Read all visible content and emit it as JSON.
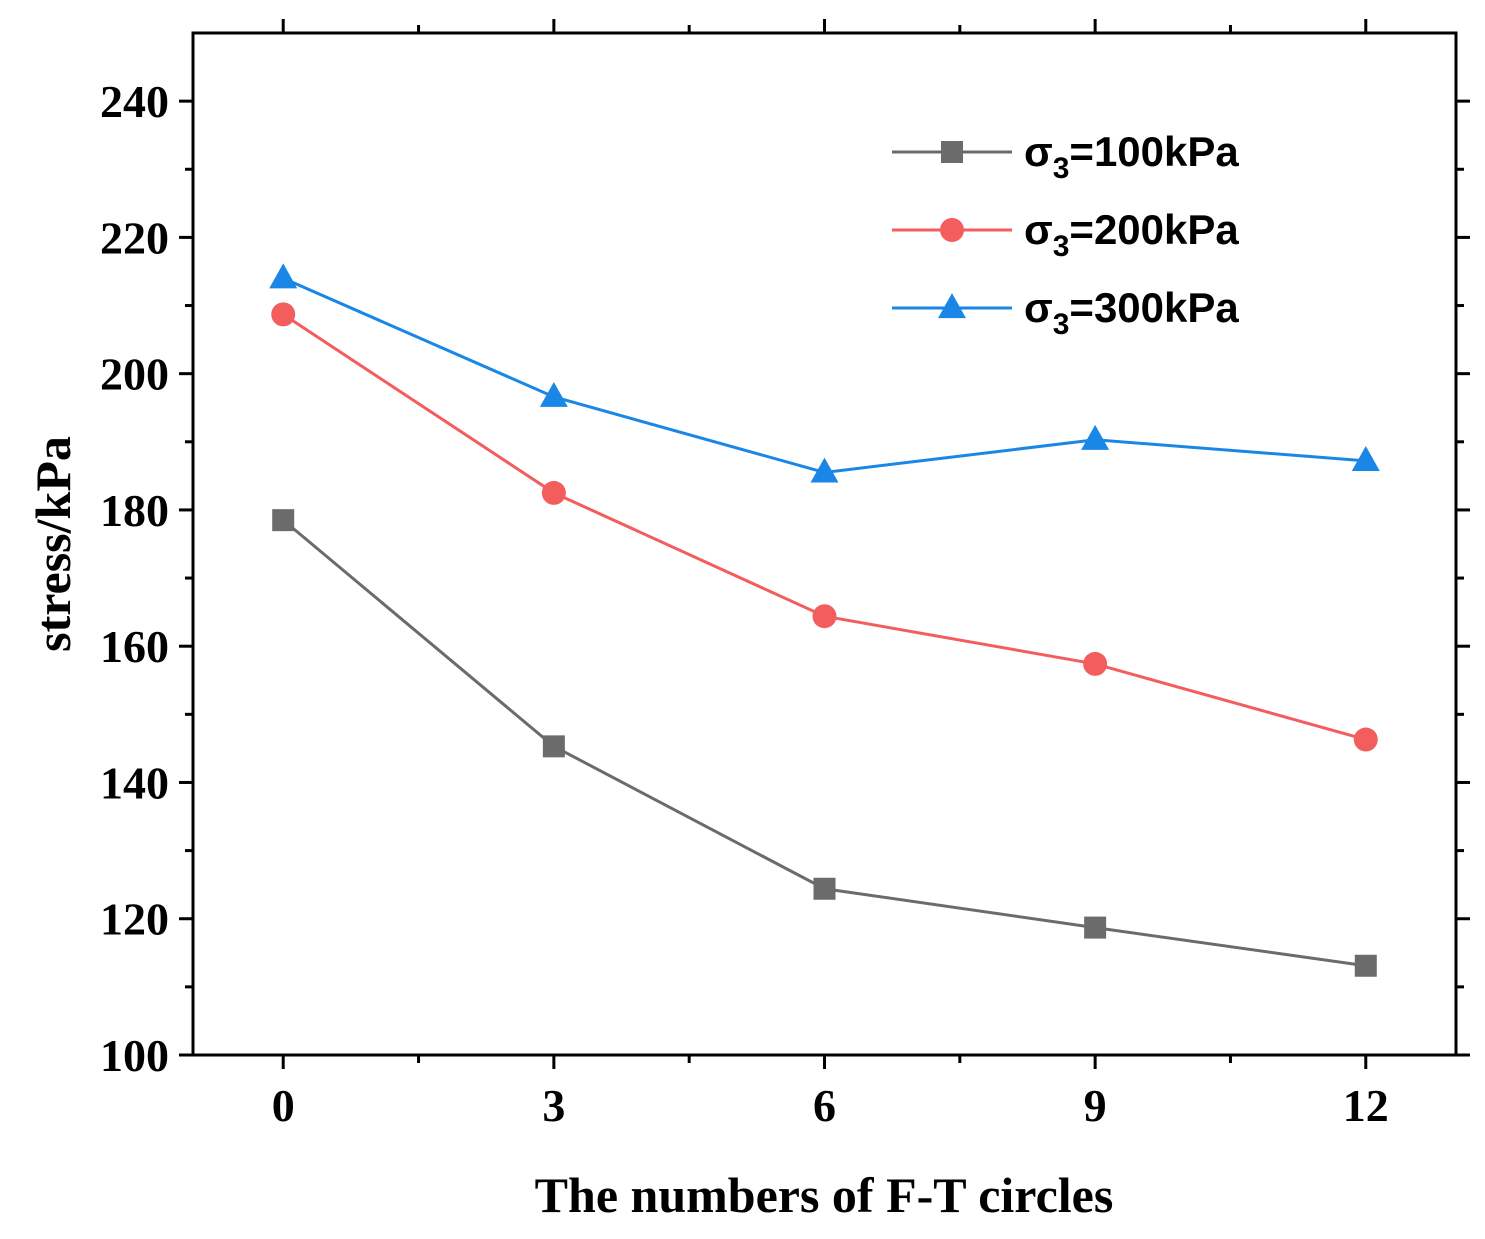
{
  "chart_data": {
    "type": "line",
    "title": "",
    "xlabel": "The numbers of F-T circles",
    "ylabel": "stress/kPa",
    "x": [
      0,
      3,
      6,
      9,
      12
    ],
    "xlim": [
      -1,
      13
    ],
    "ylim": [
      100,
      250
    ],
    "xticks": [
      "0",
      "3",
      "6",
      "9",
      "12"
    ],
    "yticks": [
      "100",
      "120",
      "140",
      "160",
      "180",
      "200",
      "220",
      "240"
    ],
    "legend_position": "top-right",
    "series": [
      {
        "name": "σ3=100kPa",
        "label_main": "σ",
        "label_sub": "3",
        "label_rest": "=100kPa",
        "marker": "square",
        "color": "#6b6b6b",
        "values": [
          178.5,
          145.3,
          124.4,
          118.7,
          113.1
        ]
      },
      {
        "name": "σ3=200kPa",
        "label_main": "σ",
        "label_sub": "3",
        "label_rest": "=200kPa",
        "marker": "circle",
        "color": "#f45d5d",
        "values": [
          208.7,
          182.5,
          164.4,
          157.4,
          146.3
        ]
      },
      {
        "name": "σ3=300kPa",
        "label_main": "σ",
        "label_sub": "3",
        "label_rest": "=300kPa",
        "marker": "triangle",
        "color": "#1a87e6",
        "values": [
          214.0,
          196.6,
          185.5,
          190.3,
          187.2
        ]
      }
    ]
  }
}
